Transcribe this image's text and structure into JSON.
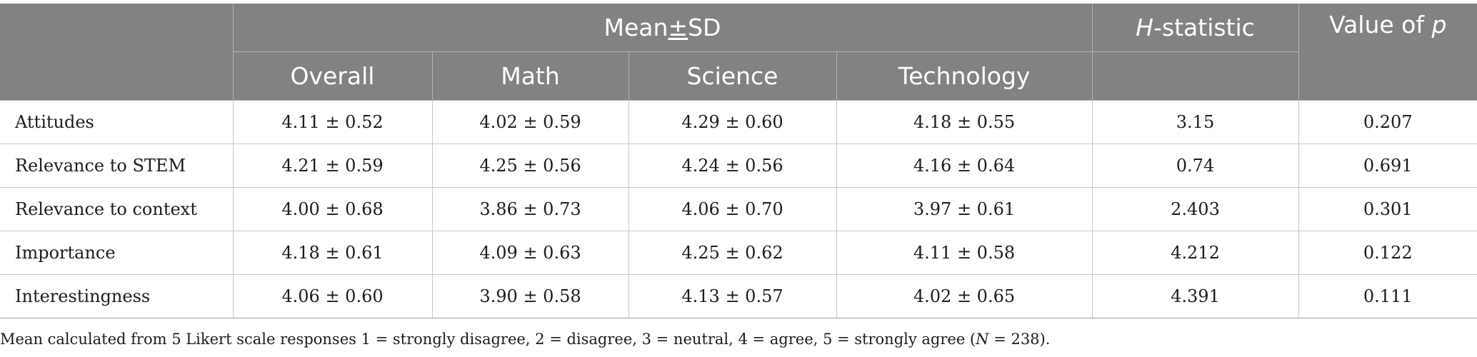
{
  "header": {
    "mean_pm": "±",
    "mean_pre": "Mean",
    "mean_post": "SD",
    "h_italic": "H",
    "h_rest": "-statistic",
    "p_pre": "Value of ",
    "p_italic": "p",
    "sub": [
      "Overall",
      "Math",
      "Science",
      "Technology"
    ]
  },
  "rows": [
    {
      "label": "Attitudes",
      "overall": "4.11 ± 0.52",
      "math": "4.02 ± 0.59",
      "science": "4.29 ± 0.60",
      "technology": "4.18 ± 0.55",
      "h": "3.15",
      "p": "0.207"
    },
    {
      "label": "Relevance to STEM",
      "overall": "4.21 ± 0.59",
      "math": "4.25 ± 0.56",
      "science": "4.24 ± 0.56",
      "technology": "4.16 ± 0.64",
      "h": "0.74",
      "p": "0.691"
    },
    {
      "label": "Relevance to context",
      "overall": "4.00 ± 0.68",
      "math": "3.86 ± 0.73",
      "science": "4.06 ± 0.70",
      "technology": "3.97 ± 0.61",
      "h": "2.403",
      "p": "0.301"
    },
    {
      "label": "Importance",
      "overall": "4.18 ± 0.61",
      "math": "4.09 ± 0.63",
      "science": "4.25 ± 0.62",
      "technology": "4.11 ± 0.58",
      "h": "4.212",
      "p": "0.122"
    },
    {
      "label": "Interestingness",
      "overall": "4.06 ± 0.60",
      "math": "3.90 ± 0.58",
      "science": "4.13 ± 0.57",
      "technology": "4.02 ± 0.65",
      "h": "4.391",
      "p": "0.111"
    }
  ],
  "footnote": {
    "pre": "Mean calculated from 5 Likert scale responses 1 = strongly disagree, 2 = disagree, 3 = neutral, 4 = agree, 5 = strongly agree (",
    "n_italic": "N",
    "post": " = 238)."
  }
}
